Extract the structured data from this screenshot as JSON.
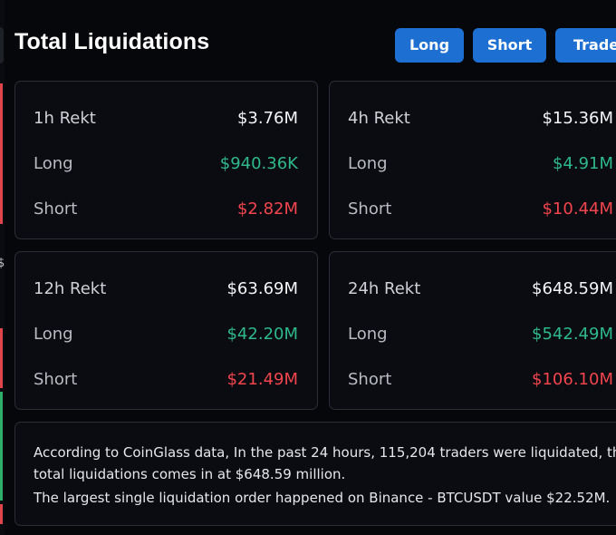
{
  "header": {
    "title": "Total Liquidations",
    "buttons": {
      "long": "Long",
      "short": "Short",
      "trade": "Trade"
    }
  },
  "edge_glyph": "$",
  "colors": {
    "accent_button": "#1d6fd2",
    "long_green": "#2fb98a",
    "short_red": "#f2454d",
    "background": "#06070b",
    "card_border": "#2b2e36"
  },
  "stats": [
    {
      "period": "1h Rekt",
      "total": "$3.76M",
      "long_label": "Long",
      "long": "$940.36K",
      "short_label": "Short",
      "short": "$2.82M"
    },
    {
      "period": "4h Rekt",
      "total": "$15.36M",
      "long_label": "Long",
      "long": "$4.91M",
      "short_label": "Short",
      "short": "$10.44M"
    },
    {
      "period": "12h Rekt",
      "total": "$63.69M",
      "long_label": "Long",
      "long": "$42.20M",
      "short_label": "Short",
      "short": "$21.49M"
    },
    {
      "period": "24h Rekt",
      "total": "$648.59M",
      "long_label": "Long",
      "long": "$542.49M",
      "short_label": "Short",
      "short": "$106.10M"
    }
  ],
  "summary": {
    "line1": "According to CoinGlass data, In the past 24 hours, 115,204 traders were liquidated, the",
    "line2": "total liquidations comes in at $648.59 million.",
    "line3": "The largest single liquidation order happened on Binance - BTCUSDT value $22.52M."
  }
}
